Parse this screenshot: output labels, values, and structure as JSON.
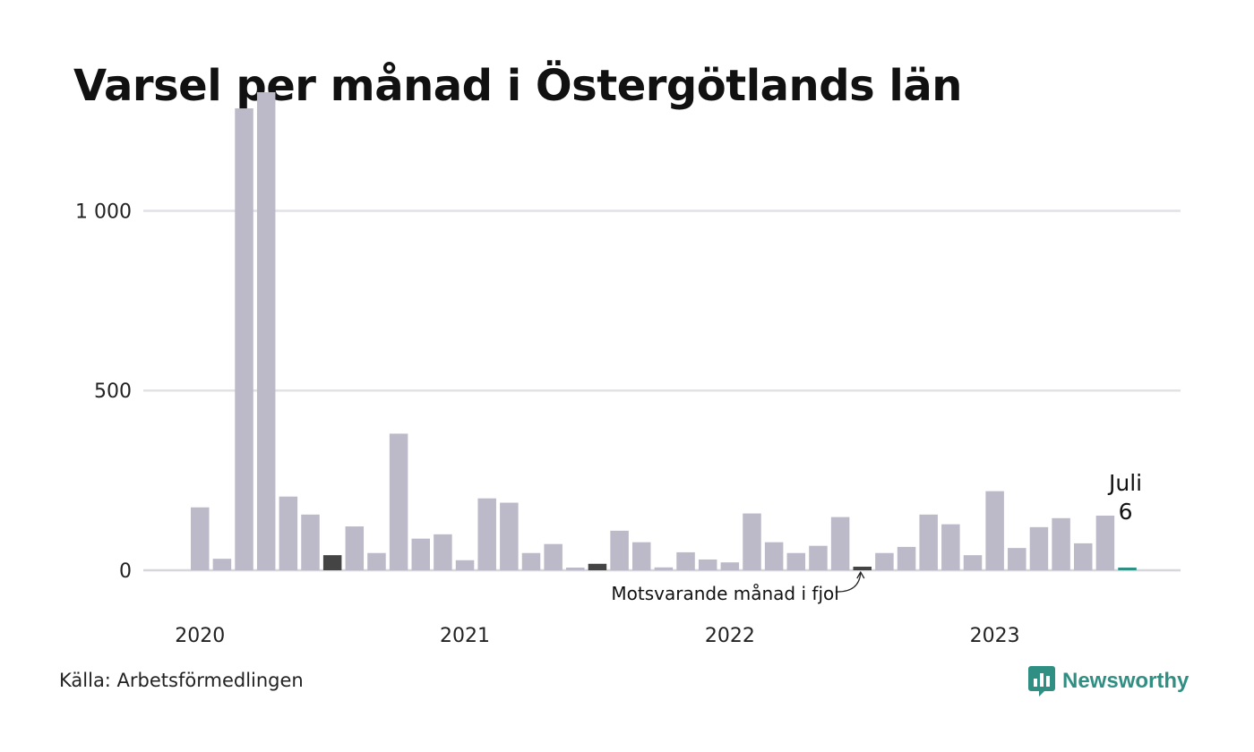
{
  "title": "Varsel per månad i Östergötlands län",
  "source": "Källa: Arbetsförmedlingen",
  "brand": {
    "name": "Newsworthy",
    "icon": "newsworthy-logo-icon",
    "color": "#2f8f83"
  },
  "chart_data": {
    "type": "bar",
    "title": "Varsel per månad i Östergötlands län",
    "ylim": [
      0,
      1320
    ],
    "yticks": [
      {
        "value": 0,
        "label": "0"
      },
      {
        "value": 500,
        "label": "500"
      },
      {
        "value": 1000,
        "label": "1 000"
      }
    ],
    "grid": true,
    "start_year": 2020,
    "start_month": 1,
    "year_labels": [
      "2020",
      "2021",
      "2022",
      "2023"
    ],
    "values": [
      175,
      32,
      1285,
      1330,
      205,
      155,
      42,
      122,
      48,
      380,
      88,
      100,
      28,
      200,
      188,
      48,
      73,
      7,
      18,
      110,
      78,
      8,
      50,
      30,
      22,
      158,
      78,
      48,
      68,
      148,
      10,
      48,
      65,
      155,
      128,
      42,
      220,
      62,
      120,
      145,
      75,
      152,
      6
    ],
    "colors": {
      "default": "#bcbac8",
      "comparison": "#444444",
      "current": "#2f8f83",
      "grid": "#e1e1e6",
      "axis": "#d6d6dc"
    },
    "comparison_indices": [
      6,
      18,
      30
    ],
    "current_index": 42,
    "annotations": {
      "current_month": "Juli",
      "current_value": "6",
      "comparison": "Motsvarande månad i fjol"
    }
  }
}
